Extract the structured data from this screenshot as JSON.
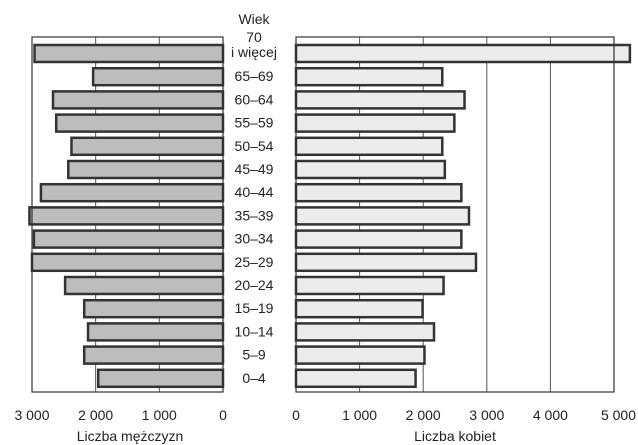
{
  "chart_data": {
    "type": "bar",
    "orientation": "horizontal",
    "subtype": "population-pyramid",
    "header_label": "Wiek",
    "categories": [
      "70 i więcej",
      "65–69",
      "60–64",
      "55–59",
      "50–54",
      "45–49",
      "40–44",
      "35–39",
      "30–34",
      "25–29",
      "20–24",
      "15–19",
      "10–14",
      "5–9",
      "0–4"
    ],
    "category_lines": [
      [
        "70",
        "i więcej"
      ],
      [
        "65–69"
      ],
      [
        "60–64"
      ],
      [
        "55–59"
      ],
      [
        "50–54"
      ],
      [
        "45–49"
      ],
      [
        "40–44"
      ],
      [
        "35–39"
      ],
      [
        "30–34"
      ],
      [
        "25–29"
      ],
      [
        "20–24"
      ],
      [
        "15–19"
      ],
      [
        "10–14"
      ],
      [
        "5–9"
      ],
      [
        "0–4"
      ]
    ],
    "series": [
      {
        "name": "Liczba mężczyzn",
        "values": [
          2960,
          2040,
          2670,
          2620,
          2380,
          2430,
          2860,
          3040,
          2970,
          3000,
          2480,
          2180,
          2120,
          2180,
          1960
        ]
      },
      {
        "name": "Liczba kobiet",
        "values": [
          5250,
          2300,
          2650,
          2490,
          2300,
          2340,
          2600,
          2720,
          2600,
          2830,
          2320,
          1990,
          2170,
          2020,
          1880
        ]
      }
    ],
    "left_axis": {
      "label": "Liczba mężczyzn",
      "range": [
        3000,
        0
      ],
      "ticks": [
        3000,
        2000,
        1000,
        0
      ],
      "tick_labels": [
        "3 000",
        "2 000",
        "1 000",
        "0"
      ]
    },
    "right_axis": {
      "label": "Liczba kobiet",
      "range": [
        0,
        5000
      ],
      "ticks": [
        0,
        1000,
        2000,
        3000,
        4000,
        5000
      ],
      "tick_labels": [
        "0",
        "1 000",
        "2 000",
        "3 000",
        "4 000",
        "5 000"
      ]
    },
    "grid": true,
    "colors": {
      "male_bar": "#bdbdbd",
      "female_bar": "#ececec",
      "bar_stroke": "#333333",
      "grid": "#555555",
      "frame": "#333333"
    }
  }
}
